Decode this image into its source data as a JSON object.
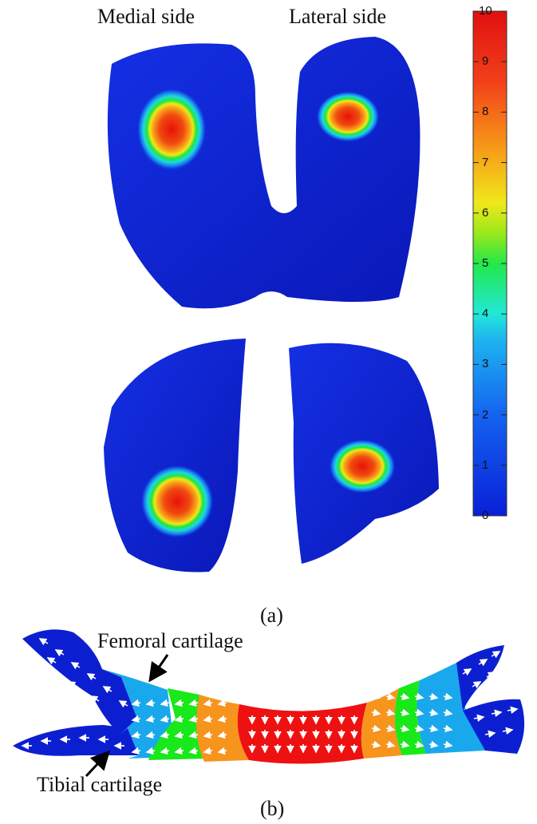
{
  "labels": {
    "medial": "Medial side",
    "lateral": "Lateral side",
    "panel_a": "(a)",
    "panel_b": "(b)",
    "femoral": "Femoral cartilage",
    "tibial": "Tibial cartilage"
  },
  "colorbar": {
    "min": 0,
    "max": 10,
    "ticks": [
      "0",
      "1",
      "2",
      "3",
      "4",
      "5",
      "6",
      "7",
      "8",
      "9",
      "10"
    ],
    "colormap": [
      "#0a1fd8",
      "#1463f0",
      "#1fb4f0",
      "#21e8d8",
      "#23e84a",
      "#9ae81a",
      "#f0e81a",
      "#f7a018",
      "#f2401a",
      "#e01010"
    ]
  },
  "colors": {
    "surface_blue": "#0f22d6",
    "band_dark_blue": "#0c1fd0",
    "band_light_blue": "#1aa8ec",
    "band_green": "#19e81a",
    "band_orange": "#f7941d",
    "band_red": "#ee1111",
    "arrow": "#ffffff"
  }
}
